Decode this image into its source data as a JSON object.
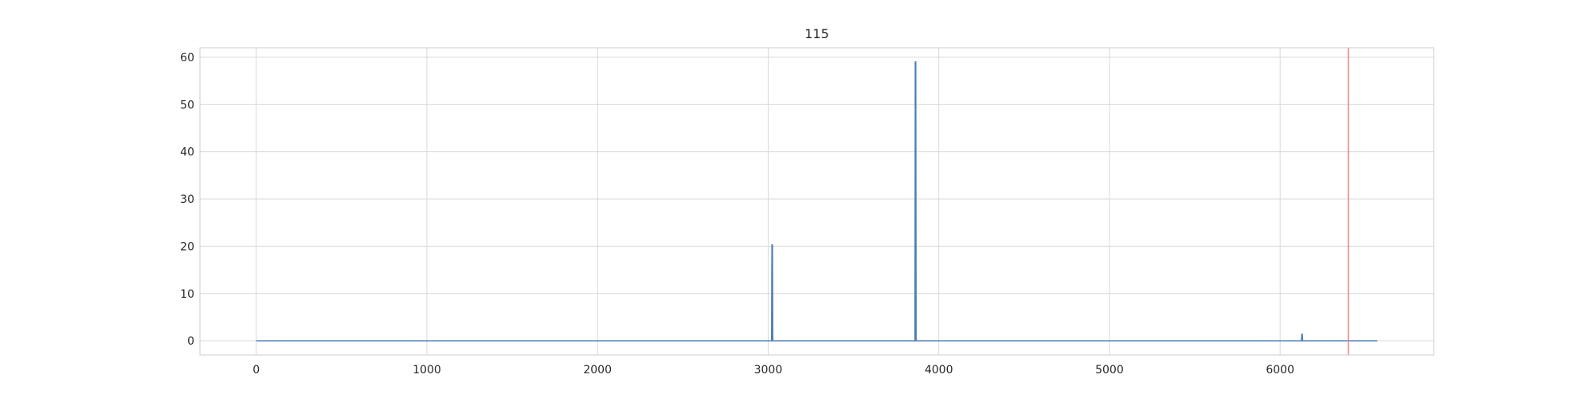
{
  "chart_data": {
    "type": "line",
    "title": "115",
    "xlabel": "",
    "ylabel": "",
    "xlim": [
      -330,
      6900
    ],
    "ylim": [
      -3,
      62
    ],
    "xticks": [
      0,
      1000,
      2000,
      3000,
      4000,
      5000,
      6000
    ],
    "yticks": [
      0,
      10,
      20,
      30,
      40,
      50,
      60
    ],
    "grid": true,
    "series": [
      {
        "color": "#4c7fb3",
        "x": [
          0,
          3020,
          3022,
          3025,
          3027,
          3860,
          3862,
          3865,
          3867,
          6125,
          6127,
          6130,
          6132,
          6570
        ],
        "y": [
          0,
          0,
          20.3,
          20.3,
          0,
          0,
          59,
          59,
          0,
          0,
          1.4,
          1.4,
          0,
          0
        ]
      }
    ],
    "vlines": [
      {
        "x": 6400,
        "color": "#e8807a"
      }
    ]
  }
}
